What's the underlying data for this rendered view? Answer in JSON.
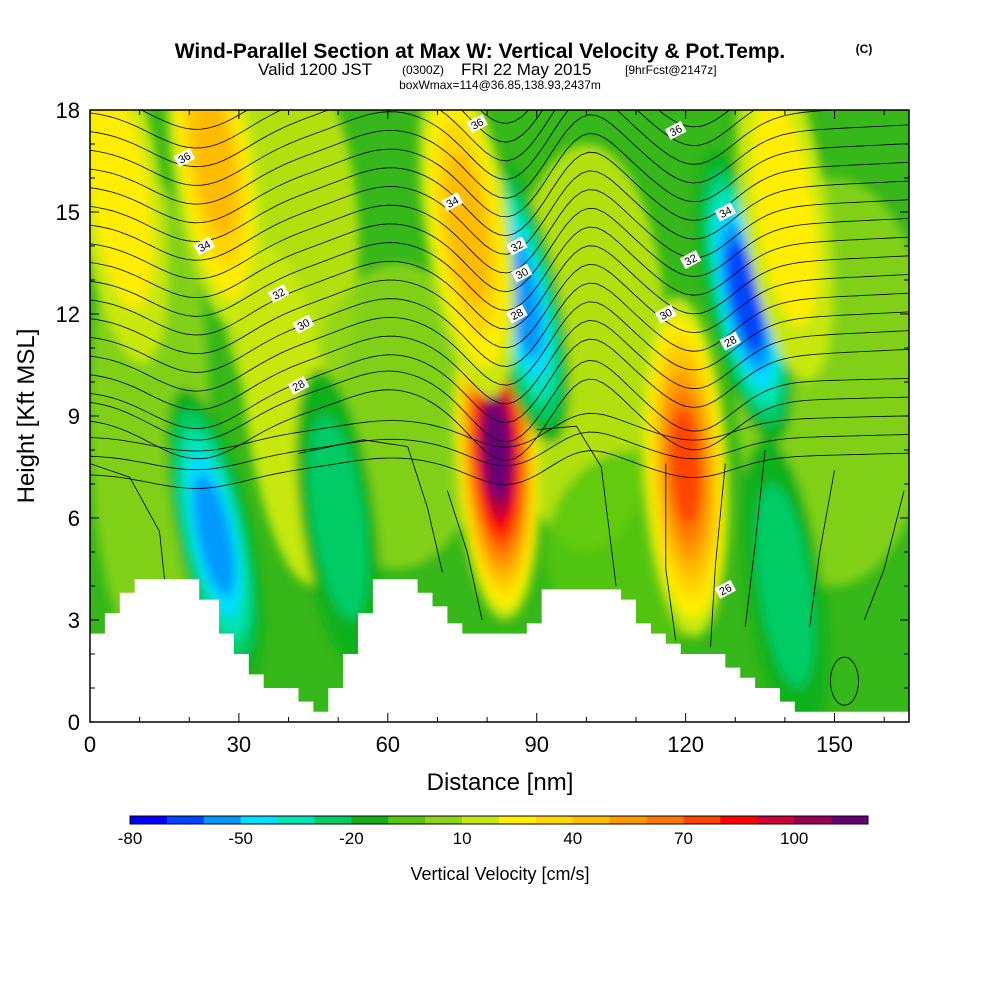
{
  "title": {
    "main": "Wind-Parallel Section at Max W: Vertical Velocity & Pot.Temp.",
    "copyright": "(C)",
    "line2_a": "Valid 1200 JST",
    "line2_b": "(0300Z)",
    "line2_c": "FRI 22 May 2015",
    "line2_d": "[9hrFcst@2147z]",
    "line3": "boxWmax=114@36.85,138.93,2437m"
  },
  "chart_data": {
    "type": "heatmap",
    "description_of_fields": "filled contours of vertical velocity (cm/s) with line contours of potential temperature",
    "xlabel": "Distance [nm]",
    "ylabel": "Height [Kft MSL]",
    "xlim": [
      0,
      165
    ],
    "ylim": [
      0,
      18
    ],
    "xticks": [
      0,
      30,
      60,
      90,
      120,
      150
    ],
    "yticks": [
      0,
      3,
      6,
      9,
      12,
      15,
      18
    ],
    "colorbar": {
      "title": "Vertical Velocity [cm/s]",
      "tick_labels": [
        "-80",
        "-50",
        "-20",
        "10",
        "40",
        "70",
        "100"
      ],
      "tick_values": [
        -80,
        -50,
        -20,
        10,
        40,
        70,
        100
      ],
      "levels": [
        -80,
        -70,
        -60,
        -50,
        -40,
        -30,
        -20,
        -10,
        0,
        10,
        20,
        30,
        40,
        50,
        60,
        70,
        80,
        90,
        100,
        110,
        120
      ],
      "colors": [
        "#0000ff",
        "#0044ff",
        "#0099ff",
        "#00ddff",
        "#00e3b4",
        "#00cc66",
        "#11b11b",
        "#55c70d",
        "#8ed517",
        "#c8e80f",
        "#ffee00",
        "#ffd700",
        "#ffbb00",
        "#ff9900",
        "#ff7700",
        "#ff4400",
        "#ff0000",
        "#cc0033",
        "#990055",
        "#660077"
      ]
    },
    "w_features": [
      {
        "x": 6,
        "y": 15.5,
        "w": 20
      },
      {
        "x": 25,
        "y": 5.5,
        "w": -55
      },
      {
        "x": 25,
        "y": 16.5,
        "w": 45
      },
      {
        "x": 40,
        "y": 9,
        "w": 15
      },
      {
        "x": 82,
        "y": 8,
        "w": 110
      },
      {
        "x": 87,
        "y": 12.5,
        "w": -55
      },
      {
        "x": 76,
        "y": 14.5,
        "w": 40
      },
      {
        "x": 120,
        "y": 7.5,
        "w": 70
      },
      {
        "x": 132,
        "y": 12.5,
        "w": -60
      },
      {
        "x": 140,
        "y": 15,
        "w": 20
      },
      {
        "x": 50,
        "y": 6,
        "w": -20
      },
      {
        "x": 140,
        "y": 4,
        "w": -20
      }
    ],
    "theta_labels": [
      {
        "text": "36",
        "x": 19,
        "y": 16.6
      },
      {
        "text": "34",
        "x": 23,
        "y": 14
      },
      {
        "text": "32",
        "x": 38,
        "y": 12.6
      },
      {
        "text": "30",
        "x": 43,
        "y": 11.7
      },
      {
        "text": "28",
        "x": 42,
        "y": 9.9
      },
      {
        "text": "36",
        "x": 78,
        "y": 17.6
      },
      {
        "text": "34",
        "x": 73,
        "y": 15.3
      },
      {
        "text": "32",
        "x": 86,
        "y": 14
      },
      {
        "text": "30",
        "x": 87,
        "y": 13.2
      },
      {
        "text": "28",
        "x": 86,
        "y": 12
      },
      {
        "text": "36",
        "x": 118,
        "y": 17.4
      },
      {
        "text": "34",
        "x": 128,
        "y": 15
      },
      {
        "text": "32",
        "x": 121,
        "y": 13.6
      },
      {
        "text": "30",
        "x": 116,
        "y": 12
      },
      {
        "text": "28",
        "x": 129,
        "y": 11.2
      },
      {
        "text": "26",
        "x": 128,
        "y": 3.9
      }
    ],
    "terrain_kft": [
      [
        0,
        2.6
      ],
      [
        3,
        2.6
      ],
      [
        3,
        3.2
      ],
      [
        6,
        3.2
      ],
      [
        6,
        3.8
      ],
      [
        9,
        3.8
      ],
      [
        9,
        4.2
      ],
      [
        22,
        4.2
      ],
      [
        22,
        3.6
      ],
      [
        26,
        3.6
      ],
      [
        26,
        2.6
      ],
      [
        29,
        2.6
      ],
      [
        29,
        2.0
      ],
      [
        32,
        2.0
      ],
      [
        32,
        1.4
      ],
      [
        35,
        1.4
      ],
      [
        35,
        1.0
      ],
      [
        42,
        1.0
      ],
      [
        42,
        0.6
      ],
      [
        45,
        0.6
      ],
      [
        45,
        0.3
      ],
      [
        48,
        0.3
      ],
      [
        48,
        1.0
      ],
      [
        51,
        1.0
      ],
      [
        51,
        2.0
      ],
      [
        54,
        2.0
      ],
      [
        54,
        3.2
      ],
      [
        57,
        3.2
      ],
      [
        57,
        4.2
      ],
      [
        66,
        4.2
      ],
      [
        66,
        3.8
      ],
      [
        69,
        3.8
      ],
      [
        69,
        3.4
      ],
      [
        72,
        3.4
      ],
      [
        72,
        2.9
      ],
      [
        75,
        2.9
      ],
      [
        75,
        2.6
      ],
      [
        88,
        2.6
      ],
      [
        88,
        2.9
      ],
      [
        91,
        2.9
      ],
      [
        91,
        3.9
      ],
      [
        107,
        3.9
      ],
      [
        107,
        3.6
      ],
      [
        110,
        3.6
      ],
      [
        110,
        2.9
      ],
      [
        113,
        2.9
      ],
      [
        113,
        2.6
      ],
      [
        116,
        2.6
      ],
      [
        116,
        2.3
      ],
      [
        119,
        2.3
      ],
      [
        119,
        2.0
      ],
      [
        128,
        2.0
      ],
      [
        128,
        1.6
      ],
      [
        131,
        1.6
      ],
      [
        131,
        1.3
      ],
      [
        134,
        1.3
      ],
      [
        134,
        1.0
      ],
      [
        139,
        1.0
      ],
      [
        139,
        0.6
      ],
      [
        142,
        0.6
      ],
      [
        142,
        0.3
      ],
      [
        165,
        0.3
      ]
    ]
  }
}
